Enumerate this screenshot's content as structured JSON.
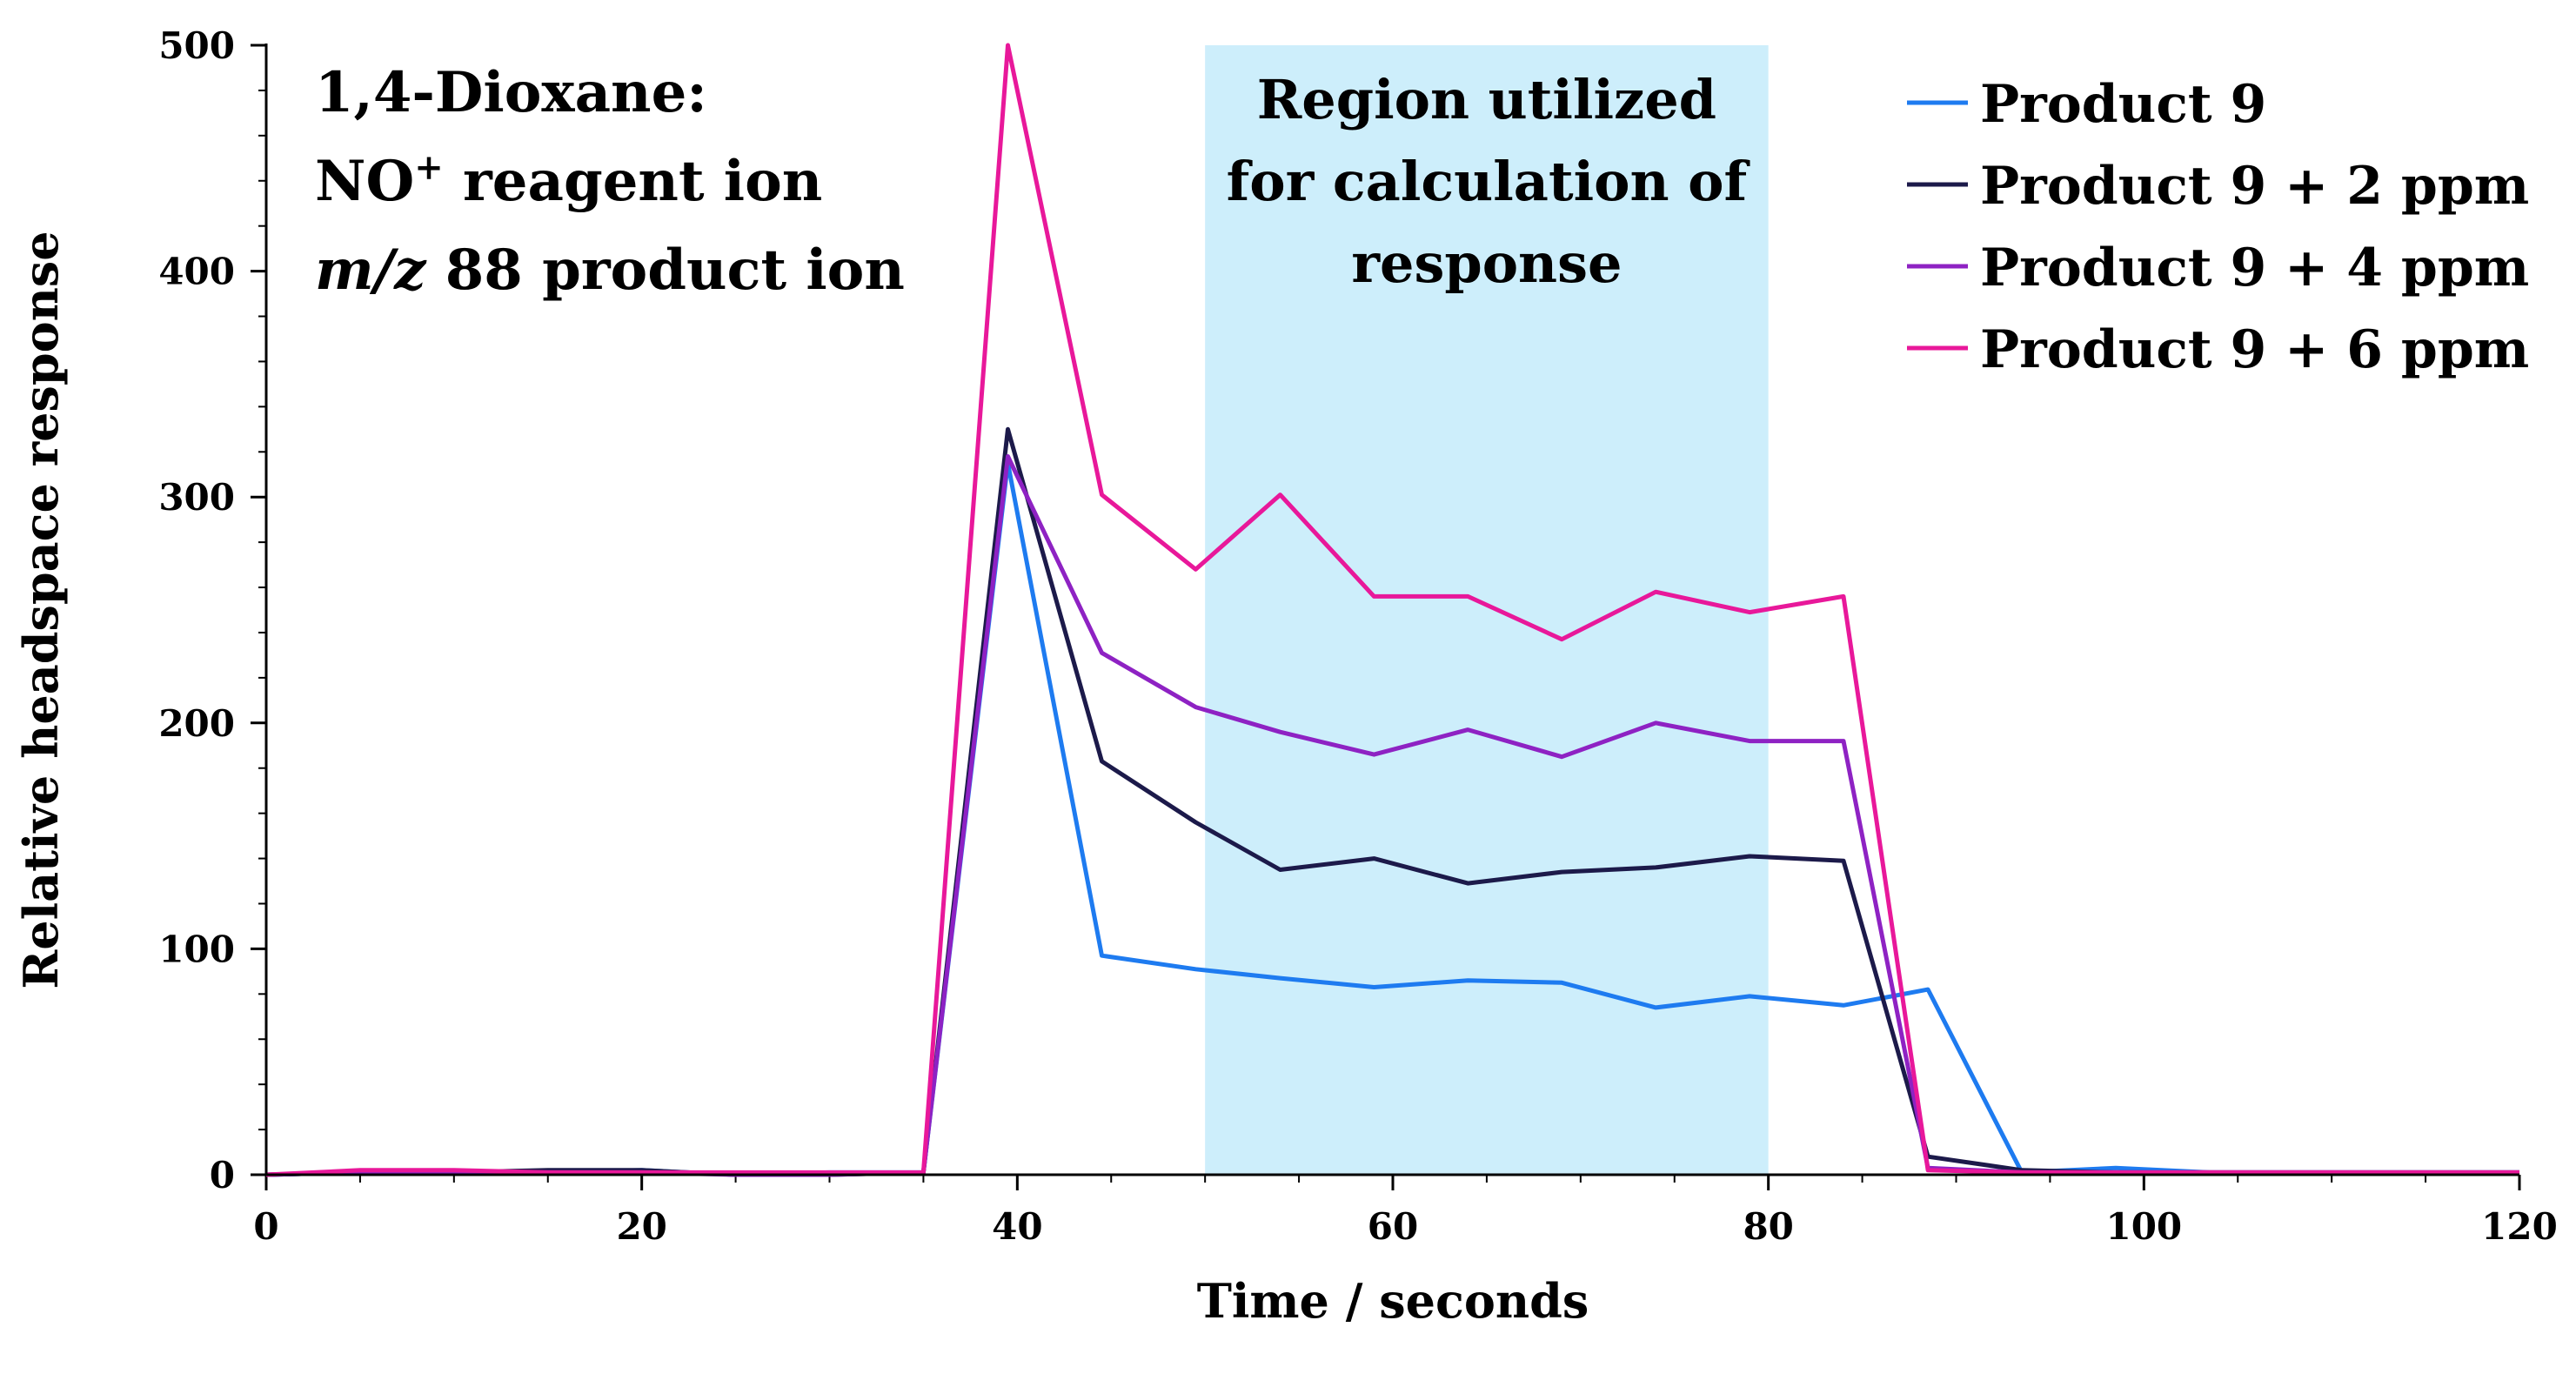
{
  "chart_data": {
    "type": "line",
    "title": "",
    "xlabel": "Time / seconds",
    "ylabel": "Relative headspace response",
    "xlim": [
      0,
      120
    ],
    "ylim": [
      0,
      500
    ],
    "xticks": [
      0,
      20,
      40,
      60,
      80,
      100,
      120
    ],
    "yticks": [
      0,
      100,
      200,
      300,
      400,
      500
    ],
    "legend_position": "top-right",
    "annotation": {
      "line1": "1,4-Dioxane:",
      "line2_prefix": "NO",
      "line2_superscript": "+",
      "line2_suffix": " reagent ion",
      "line3_italic": "m/z",
      "line3_rest": " 88 product ion"
    },
    "region": {
      "x_start": 50,
      "x_end": 80,
      "color": "#cdeefb",
      "label_lines": [
        "Region utilized",
        "for calculation of",
        "response"
      ]
    },
    "series": [
      {
        "name": "Product 9",
        "color": "#1e7bf0",
        "x": [
          0,
          5,
          10,
          15,
          20,
          25,
          30,
          35,
          39.5,
          44.5,
          49.5,
          54,
          59,
          64,
          69,
          74,
          79,
          84,
          88.5,
          93.5,
          98.5,
          103.5,
          108.5,
          113.5,
          120
        ],
        "y": [
          0,
          1,
          1,
          1,
          2,
          0,
          1,
          1,
          315,
          97,
          91,
          87,
          83,
          86,
          85,
          74,
          79,
          75,
          82,
          1,
          3,
          1,
          1,
          1,
          1
        ]
      },
      {
        "name": "Product 9 + 2 ppm",
        "color": "#1c1a4a",
        "x": [
          0,
          5,
          10,
          15,
          20,
          25,
          30,
          35,
          39.5,
          44.5,
          49.5,
          54,
          59,
          64,
          69,
          74,
          79,
          84,
          88.5,
          93.5,
          98.5,
          103.5,
          108.5,
          113.5,
          120
        ],
        "y": [
          0,
          1,
          1,
          2,
          2,
          0,
          0,
          1,
          330,
          183,
          156,
          135,
          140,
          129,
          134,
          136,
          141,
          139,
          8,
          2,
          1,
          1,
          1,
          1,
          1
        ]
      },
      {
        "name": "Product 9 + 4 ppm",
        "color": "#8e22c3",
        "x": [
          0,
          5,
          10,
          15,
          20,
          25,
          30,
          35,
          39.5,
          44.5,
          49.5,
          54,
          59,
          64,
          69,
          74,
          79,
          84,
          88.5,
          93.5,
          98.5,
          103.5,
          108.5,
          113.5,
          120
        ],
        "y": [
          0,
          1,
          1,
          1,
          1,
          0,
          0,
          1,
          318,
          231,
          207,
          196,
          186,
          197,
          185,
          200,
          192,
          192,
          3,
          1,
          1,
          1,
          1,
          1,
          1
        ]
      },
      {
        "name": "Product 9 + 6 ppm",
        "color": "#e8189a",
        "x": [
          0,
          5,
          10,
          15,
          20,
          25,
          30,
          35,
          39.5,
          44.5,
          49.5,
          54,
          59,
          64,
          69,
          74,
          79,
          84,
          88.5,
          93.5,
          98.5,
          103.5,
          108.5,
          113.5,
          120
        ],
        "y": [
          0,
          2,
          2,
          1,
          1,
          1,
          1,
          1,
          500,
          301,
          268,
          301,
          256,
          256,
          237,
          258,
          249,
          256,
          2,
          1,
          1,
          1,
          1,
          1,
          1
        ]
      }
    ]
  }
}
